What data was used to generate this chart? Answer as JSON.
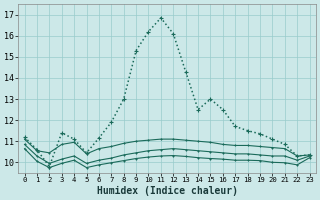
{
  "xlabel": "Humidex (Indice chaleur)",
  "background_color": "#cce8e8",
  "grid_color": "#99cccc",
  "line_color": "#1a6a5a",
  "xlim": [
    -0.5,
    23.5
  ],
  "ylim": [
    9.5,
    17.5
  ],
  "yticks": [
    10,
    11,
    12,
    13,
    14,
    15,
    16,
    17
  ],
  "xticks": [
    0,
    1,
    2,
    3,
    4,
    5,
    6,
    7,
    8,
    9,
    10,
    11,
    12,
    13,
    14,
    15,
    16,
    17,
    18,
    19,
    20,
    21,
    22,
    23
  ],
  "series": [
    {
      "x": [
        0,
        1,
        2,
        3,
        4,
        5,
        6,
        7,
        8,
        9,
        10,
        11,
        12,
        13,
        14,
        15,
        16,
        17,
        18,
        19,
        20,
        21,
        22,
        23
      ],
      "y": [
        11.2,
        10.6,
        9.8,
        11.4,
        11.1,
        10.45,
        11.15,
        11.9,
        13.0,
        15.3,
        16.2,
        16.85,
        16.1,
        14.3,
        12.5,
        13.0,
        12.5,
        11.7,
        11.5,
        11.35,
        11.1,
        10.85,
        10.3,
        10.35
      ],
      "linestyle": ":",
      "marker": "P",
      "markersize": 2.5,
      "linewidth": 1.1
    },
    {
      "x": [
        0,
        1,
        2,
        3,
        4,
        5,
        6,
        7,
        8,
        9,
        10,
        11,
        12,
        13,
        14,
        15,
        16,
        17,
        18,
        19,
        20,
        21,
        22,
        23
      ],
      "y": [
        11.1,
        10.55,
        10.45,
        10.85,
        10.95,
        10.4,
        10.65,
        10.75,
        10.9,
        11.0,
        11.05,
        11.1,
        11.1,
        11.05,
        11.0,
        10.95,
        10.85,
        10.8,
        10.8,
        10.75,
        10.7,
        10.65,
        10.3,
        10.35
      ],
      "linestyle": "-",
      "marker": "P",
      "markersize": 2.0,
      "linewidth": 0.8
    },
    {
      "x": [
        0,
        1,
        2,
        3,
        4,
        5,
        6,
        7,
        8,
        9,
        10,
        11,
        12,
        13,
        14,
        15,
        16,
        17,
        18,
        19,
        20,
        21,
        22,
        23
      ],
      "y": [
        10.85,
        10.3,
        9.95,
        10.15,
        10.3,
        9.95,
        10.1,
        10.2,
        10.35,
        10.45,
        10.55,
        10.6,
        10.65,
        10.6,
        10.55,
        10.5,
        10.45,
        10.4,
        10.4,
        10.35,
        10.3,
        10.3,
        10.1,
        10.3
      ],
      "linestyle": "-",
      "marker": "P",
      "markersize": 2.0,
      "linewidth": 0.8
    },
    {
      "x": [
        0,
        1,
        2,
        3,
        4,
        5,
        6,
        7,
        8,
        9,
        10,
        11,
        12,
        13,
        14,
        15,
        16,
        17,
        18,
        19,
        20,
        21,
        22,
        23
      ],
      "y": [
        10.65,
        10.05,
        9.75,
        9.95,
        10.1,
        9.75,
        9.88,
        9.98,
        10.08,
        10.18,
        10.25,
        10.3,
        10.32,
        10.28,
        10.22,
        10.18,
        10.15,
        10.1,
        10.1,
        10.08,
        10.0,
        9.98,
        9.88,
        10.22
      ],
      "linestyle": "-",
      "marker": "P",
      "markersize": 2.0,
      "linewidth": 0.8
    }
  ]
}
